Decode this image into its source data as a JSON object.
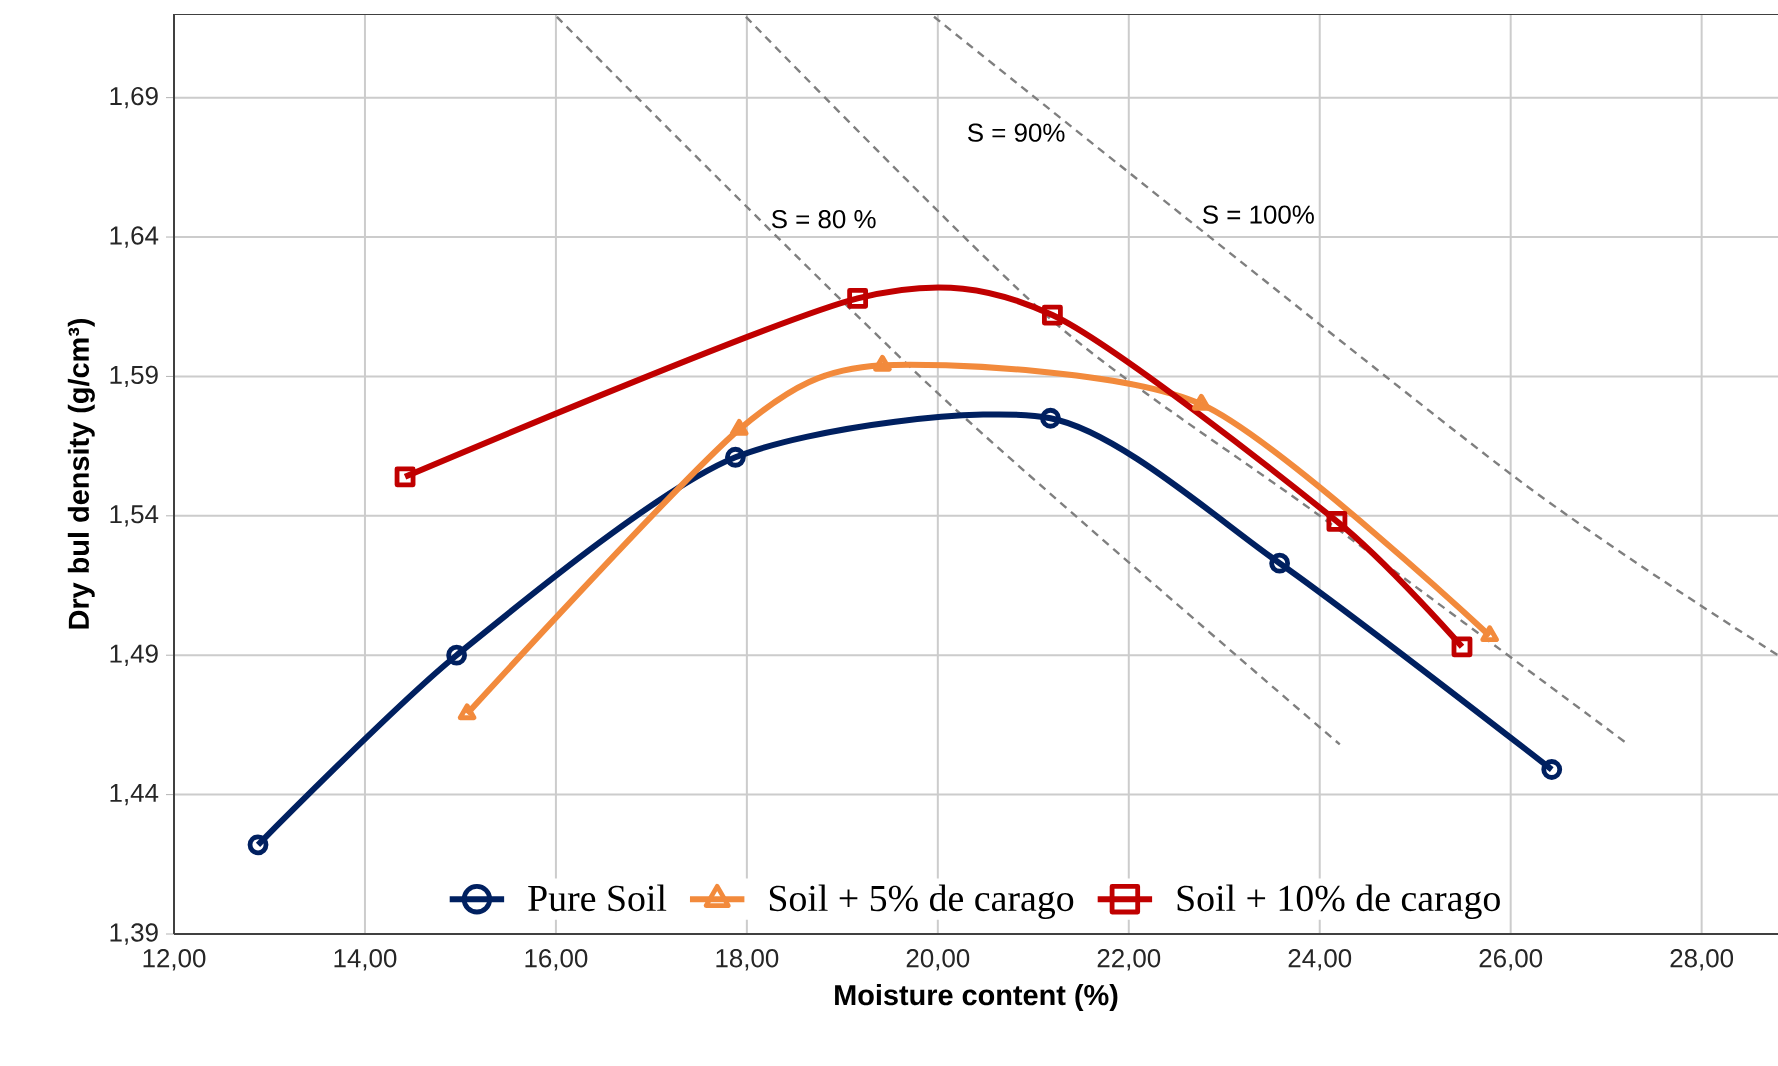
{
  "chart_data": {
    "type": "line",
    "xlabel": "Moisture content (%)",
    "ylabel": "Dry bul density (g/cm³)",
    "xlim": [
      12,
      28.8
    ],
    "ylim": [
      1.39,
      1.72
    ],
    "xticks": [
      {
        "value": 12,
        "label": "12,00"
      },
      {
        "value": 14,
        "label": "14,00"
      },
      {
        "value": 16,
        "label": "16,00"
      },
      {
        "value": 18,
        "label": "18,00"
      },
      {
        "value": 20,
        "label": "20,00"
      },
      {
        "value": 22,
        "label": "22,00"
      },
      {
        "value": 24,
        "label": "24,00"
      },
      {
        "value": 26,
        "label": "26,00"
      },
      {
        "value": 28,
        "label": "28,00"
      }
    ],
    "yticks": [
      {
        "value": 1.39,
        "label": "1,39"
      },
      {
        "value": 1.44,
        "label": "1,44"
      },
      {
        "value": 1.49,
        "label": "1,49"
      },
      {
        "value": 1.54,
        "label": "1,54"
      },
      {
        "value": 1.59,
        "label": "1,59"
      },
      {
        "value": 1.64,
        "label": "1,64"
      },
      {
        "value": 1.69,
        "label": "1,69"
      }
    ],
    "grid": true,
    "legend": "bottom",
    "series": [
      {
        "color": "#7f7f7f",
        "line_style": "dashed",
        "marker": "none",
        "x": [
          16.01,
          20.0,
          24.21
        ],
        "values": [
          1.719,
          1.584,
          1.458
        ]
      },
      {
        "color": "#7f7f7f",
        "line_style": "dashed",
        "marker": "none",
        "x": [
          17.99,
          21.2,
          24.0,
          27.23
        ],
        "values": [
          1.719,
          1.61,
          1.54,
          1.458
        ]
      },
      {
        "color": "#7f7f7f",
        "line_style": "dashed",
        "marker": "none",
        "x": [
          19.96,
          26.0,
          28.8
        ],
        "values": [
          1.719,
          1.555,
          1.49
        ]
      },
      {
        "name": "Pure Soil",
        "color": "#002060",
        "line_style": "solid",
        "marker": "circle",
        "x": [
          12.88,
          14.96,
          17.88,
          21.18,
          23.58,
          26.43
        ],
        "values": [
          1.422,
          1.49,
          1.561,
          1.575,
          1.523,
          1.449
        ]
      },
      {
        "name": "Soil + 5% de carago",
        "color": "#f28a3c",
        "line_style": "solid",
        "marker": "triangle",
        "x": [
          15.07,
          17.92,
          19.42,
          22.76,
          25.78
        ],
        "values": [
          1.469,
          1.571,
          1.594,
          1.58,
          1.497
        ]
      },
      {
        "name": "Soil + 10% de carago",
        "color": "#c00000",
        "line_style": "solid",
        "marker": "square",
        "x": [
          14.42,
          19.16,
          21.2,
          24.18,
          25.49
        ],
        "values": [
          1.554,
          1.618,
          1.612,
          1.538,
          1.493
        ]
      }
    ],
    "annotations": [
      "S = 80 %",
      "S = 90%",
      "S = 100%"
    ]
  }
}
